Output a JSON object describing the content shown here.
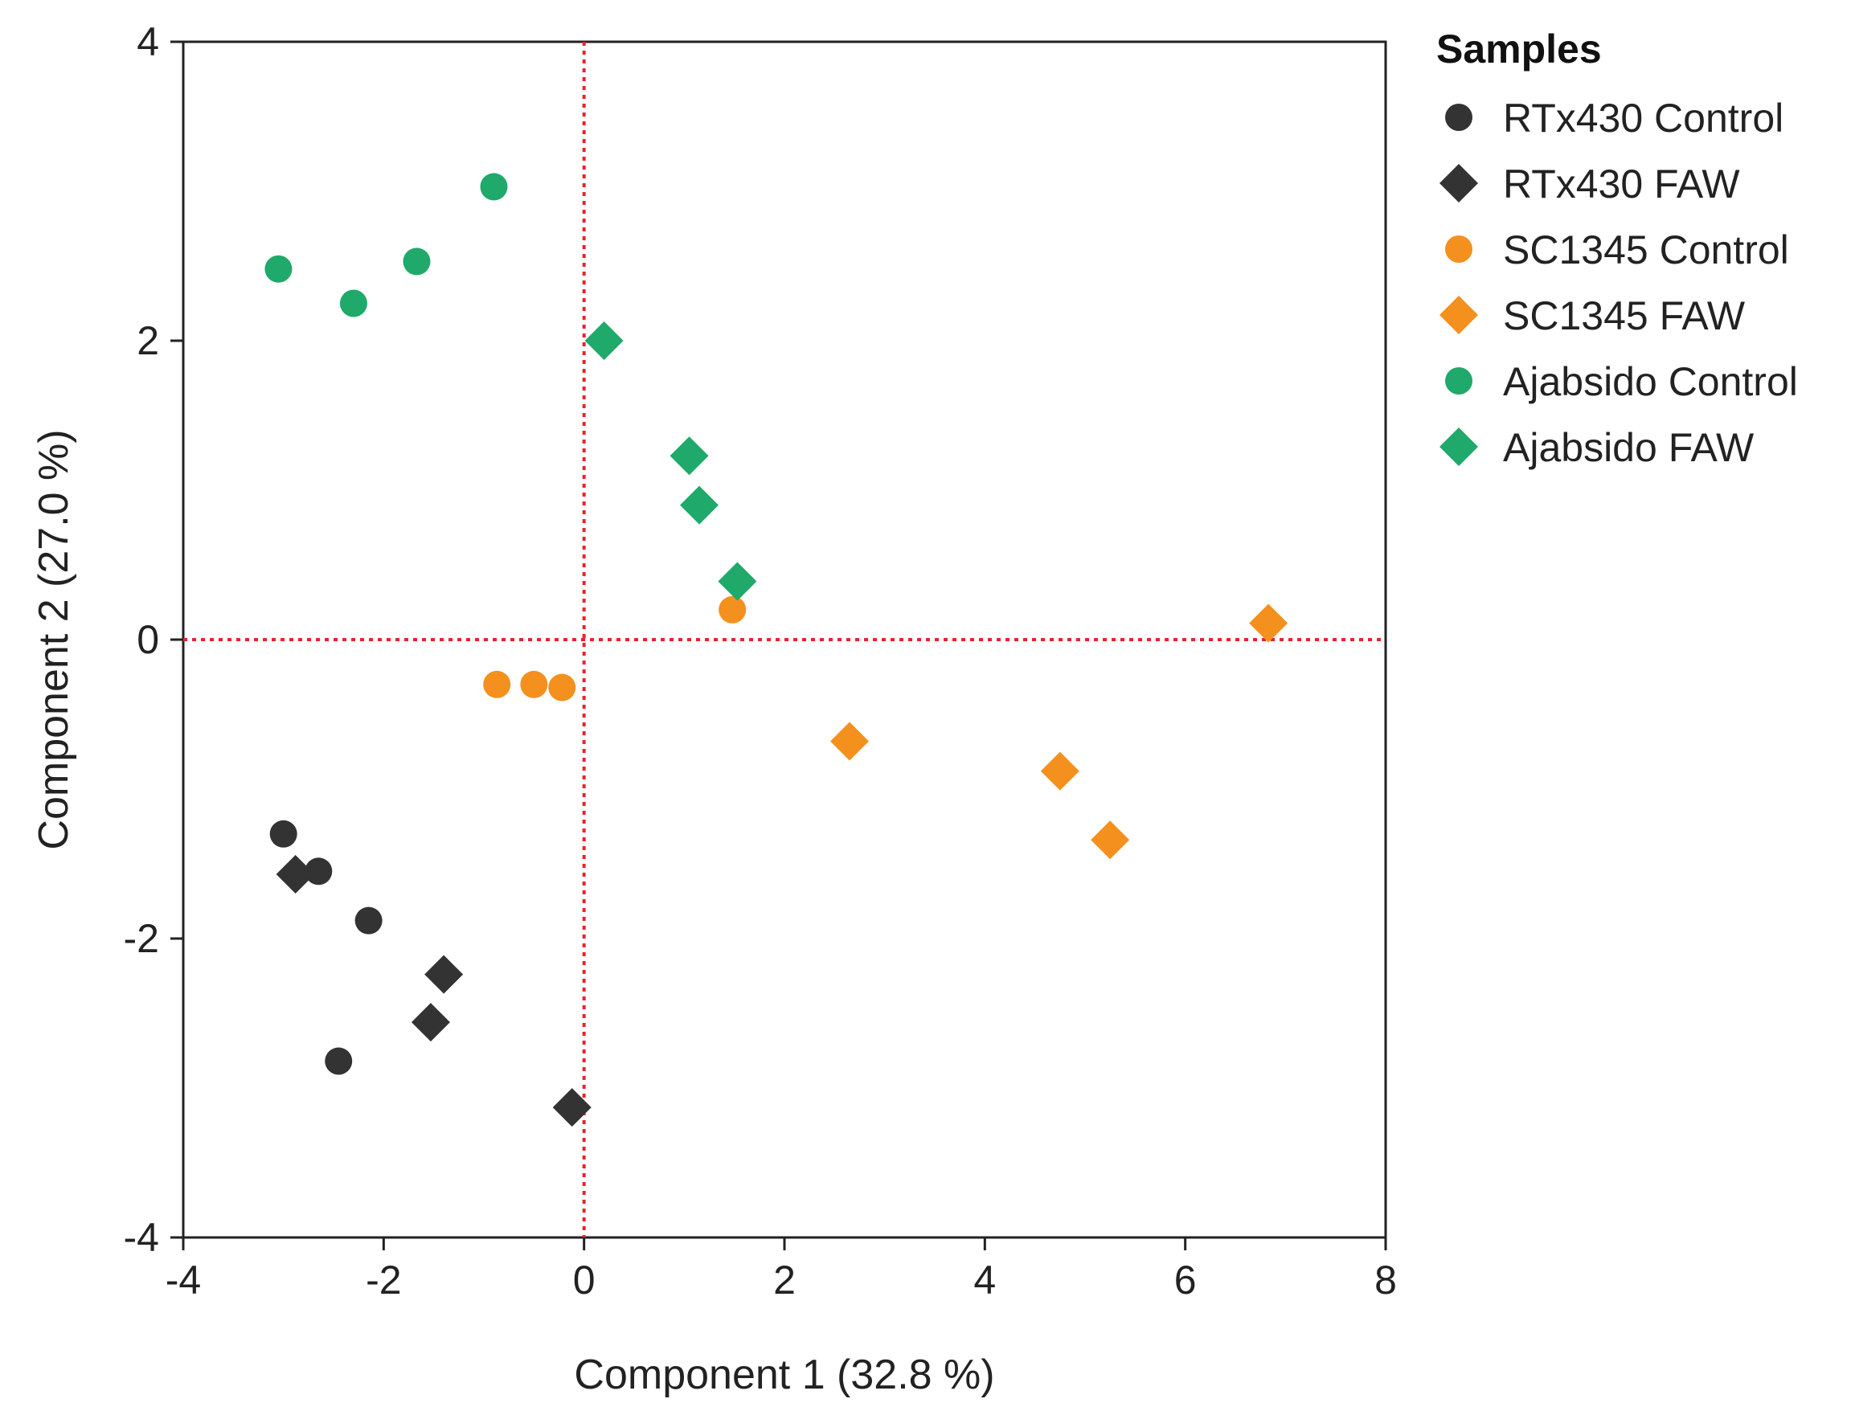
{
  "chart_data": {
    "type": "scatter",
    "title": "",
    "xlabel": "Component 1  (32.8 %)",
    "ylabel": "Component 2  (27.0 %)",
    "xlim": [
      -4,
      8
    ],
    "ylim": [
      -4,
      4
    ],
    "xticks": [
      "-4",
      "-2",
      "0",
      "2",
      "4",
      "6",
      "8"
    ],
    "yticks": [
      "-4",
      "-2",
      "0",
      "2",
      "4"
    ],
    "xtick_values": [
      -4,
      -2,
      0,
      2,
      4,
      6,
      8
    ],
    "ytick_values": [
      -4,
      -2,
      0,
      2,
      4
    ],
    "reference_lines": {
      "x": 0,
      "y": 0,
      "color": "#e8232b",
      "style": "dotted"
    },
    "legend": {
      "title": "Samples",
      "position": "right"
    },
    "series": [
      {
        "name": "RTx430 Control",
        "marker": "circle",
        "color": "#333333",
        "points": [
          [
            -3.0,
            -1.3
          ],
          [
            -2.65,
            -1.55
          ],
          [
            -2.15,
            -1.88
          ],
          [
            -2.45,
            -2.82
          ]
        ]
      },
      {
        "name": "RTx430 FAW",
        "marker": "diamond",
        "color": "#333333",
        "points": [
          [
            -2.88,
            -1.57
          ],
          [
            -1.4,
            -2.24
          ],
          [
            -1.53,
            -2.56
          ],
          [
            -0.12,
            -3.13
          ]
        ]
      },
      {
        "name": "SC1345 Control",
        "marker": "circle",
        "color": "#f4901e",
        "points": [
          [
            -0.87,
            -0.3
          ],
          [
            -0.5,
            -0.3
          ],
          [
            -0.22,
            -0.32
          ],
          [
            1.48,
            0.2
          ]
        ]
      },
      {
        "name": "SC1345 FAW",
        "marker": "diamond",
        "color": "#f4901e",
        "points": [
          [
            2.65,
            -0.68
          ],
          [
            4.75,
            -0.88
          ],
          [
            5.25,
            -1.34
          ],
          [
            6.83,
            0.11
          ]
        ]
      },
      {
        "name": "Ajabsido Control",
        "marker": "circle",
        "color": "#1fa96a",
        "points": [
          [
            -3.05,
            2.48
          ],
          [
            -2.3,
            2.25
          ],
          [
            -1.67,
            2.53
          ],
          [
            -0.9,
            3.03
          ]
        ]
      },
      {
        "name": "Ajabsido FAW",
        "marker": "diamond",
        "color": "#1fa96a",
        "points": [
          [
            0.2,
            2.0
          ],
          [
            1.05,
            1.23
          ],
          [
            1.15,
            0.9
          ],
          [
            1.53,
            0.39
          ]
        ]
      }
    ]
  }
}
